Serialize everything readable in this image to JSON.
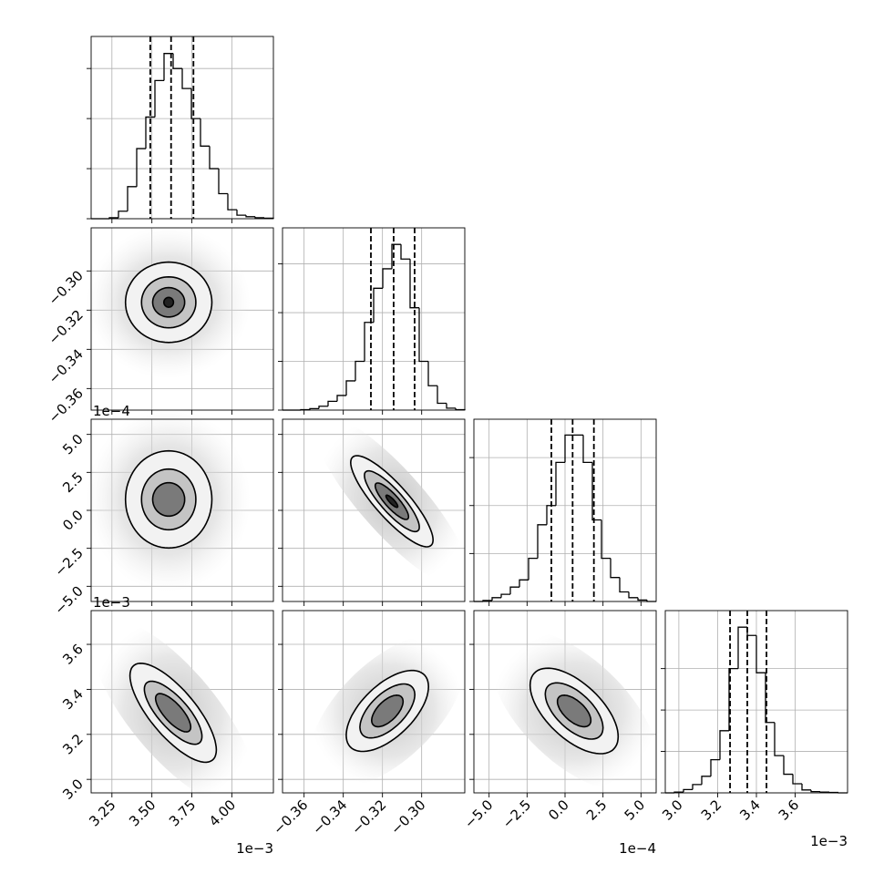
{
  "chart_data": {
    "type": "corner",
    "params": [
      {
        "lim": [
          3.12,
          4.26
        ],
        "ticks": [
          3.25,
          {
            "value": 3.5,
            "label": "3.50"
          },
          3.75,
          {
            "value": 4.0,
            "label": "4.00"
          }
        ],
        "offset": "1e−3"
      },
      {
        "lim": [
          -0.371,
          -0.278
        ],
        "ticks": [
          {
            "value": -0.36,
            "label": "−0.36"
          },
          {
            "value": -0.34,
            "label": "−0.34"
          },
          {
            "value": -0.32,
            "label": "−0.32"
          },
          {
            "value": -0.3,
            "label": "−0.30"
          }
        ]
      },
      {
        "lim": [
          -6,
          6
        ],
        "ticks": [
          {
            "value": -5,
            "label": "−5.0"
          },
          {
            "value": -2.5,
            "label": "−2.5"
          },
          {
            "value": 0,
            "label": "0.0"
          },
          2.5,
          {
            "value": 5,
            "label": "5.0"
          }
        ],
        "offset": "1e−4"
      },
      {
        "lim": [
          2.94,
          3.75
        ],
        "ticks": [
          {
            "value": 3,
            "label": "3.0"
          },
          3.2,
          3.4,
          3.6
        ],
        "offset": "1e−3"
      }
    ],
    "histograms": [
      {
        "bins": [
          3.12,
          3.177,
          3.234,
          3.291,
          3.348,
          3.405,
          3.462,
          3.519,
          3.576,
          3.633,
          3.69,
          3.747,
          3.804,
          3.861,
          3.918,
          3.975,
          4.032,
          4.089,
          4.146,
          4.203,
          4.26
        ],
        "counts": [
          0,
          0,
          0.02,
          0.15,
          0.64,
          1.4,
          2.03,
          2.76,
          3.3,
          3.0,
          2.6,
          2.0,
          1.45,
          1.0,
          0.5,
          0.18,
          0.07,
          0.04,
          0.02,
          0.01
        ],
        "ylim": [
          0,
          3.64
        ],
        "yticks": [
          0,
          1,
          2,
          3
        ],
        "quantiles": [
          3.49,
          3.62,
          3.76
        ]
      },
      {
        "bins": [
          -0.371,
          -0.36635,
          -0.3617,
          -0.35705,
          -0.3524,
          -0.34775,
          -0.3431,
          -0.33845,
          -0.3338,
          -0.32915,
          -0.3245,
          -0.31985,
          -0.3152,
          -0.31055,
          -0.3059,
          -0.30125,
          -0.2966,
          -0.29195,
          -0.2873,
          -0.28265,
          -0.278
        ],
        "counts": [
          0,
          0,
          0.01,
          0.03,
          0.08,
          0.18,
          0.3,
          0.6,
          1.0,
          1.8,
          2.5,
          2.9,
          3.4,
          3.1,
          2.1,
          1.0,
          0.5,
          0.14,
          0.04,
          0.01
        ],
        "ylim": [
          0,
          3.74
        ],
        "yticks": [
          0,
          1,
          2,
          3
        ],
        "quantiles": [
          -0.3259,
          -0.3143,
          -0.3036
        ]
      },
      {
        "bins": [
          -6,
          -5.4,
          -4.8,
          -4.2,
          -3.6,
          -3,
          -2.4,
          -1.8,
          -1.2,
          -0.6,
          0,
          0.6,
          1.2,
          1.8,
          2.4,
          3,
          3.6,
          4.2,
          4.8,
          5.4,
          6
        ],
        "counts": [
          0,
          0.02,
          0.08,
          0.15,
          0.3,
          0.45,
          0.9,
          1.6,
          2.0,
          2.9,
          3.47,
          3.47,
          2.9,
          1.7,
          0.9,
          0.5,
          0.2,
          0.08,
          0.03,
          0
        ],
        "ylim": [
          0,
          3.8
        ],
        "yticks": [
          0,
          1,
          2,
          3
        ],
        "quantiles": [
          -0.9,
          0.5,
          1.9
        ]
      },
      {
        "xlim": [
          2.93,
          3.87
        ],
        "bins": [
          2.93,
          2.977,
          3.024,
          3.071,
          3.118,
          3.165,
          3.212,
          3.259,
          3.306,
          3.353,
          3.4,
          3.447,
          3.494,
          3.541,
          3.588,
          3.635,
          3.682,
          3.729,
          3.776,
          3.823,
          3.87
        ],
        "counts": [
          0,
          0.02,
          0.08,
          0.2,
          0.4,
          0.8,
          1.5,
          3.0,
          4.0,
          3.8,
          2.9,
          1.7,
          0.9,
          0.45,
          0.22,
          0.07,
          0.03,
          0.02,
          0.01,
          0
        ],
        "ylim": [
          0,
          4.4
        ],
        "yticks": [
          0,
          1,
          2,
          3
        ],
        "quantiles": [
          3.264,
          3.353,
          3.452
        ],
        "offset": "1e−3"
      }
    ],
    "panels": [
      {
        "x": 0,
        "y": 1,
        "center": [
          3.605,
          -0.316
        ],
        "rho": 0,
        "rx": [
          0.27,
          0.17,
          0.1,
          0.03
        ],
        "ry": [
          0.0205,
          0.013,
          0.0075,
          0.0025
        ]
      },
      {
        "x": 0,
        "y": 2,
        "center": [
          3.605,
          0.72
        ],
        "rho": 0,
        "rx": [
          0.27,
          0.17,
          0.1
        ],
        "ry": [
          3.2,
          2.0,
          1.1
        ]
      },
      {
        "x": 1,
        "y": 2,
        "center": [
          -0.3152,
          0.6
        ],
        "rho": -0.85,
        "rx": [
          0.021,
          0.014,
          0.0085,
          0.003
        ],
        "ry": [
          3.0,
          2.0,
          1.2,
          0.4
        ]
      },
      {
        "x": 0,
        "y": 3,
        "center": [
          3.633,
          3.296
        ],
        "rho": -0.75,
        "rx": [
          0.27,
          0.18,
          0.11
        ],
        "ry": [
          0.22,
          0.14,
          0.085
        ]
      },
      {
        "x": 1,
        "y": 3,
        "center": [
          -0.3175,
          3.304
        ],
        "rho": 0.6,
        "rx": [
          0.021,
          0.014,
          0.008
        ],
        "ry": [
          0.18,
          0.12,
          0.07
        ]
      },
      {
        "x": 2,
        "y": 3,
        "center": [
          0.6,
          3.304
        ],
        "rho": -0.6,
        "rx": [
          2.9,
          1.9,
          1.1
        ],
        "ry": [
          0.19,
          0.125,
          0.07
        ]
      }
    ]
  }
}
